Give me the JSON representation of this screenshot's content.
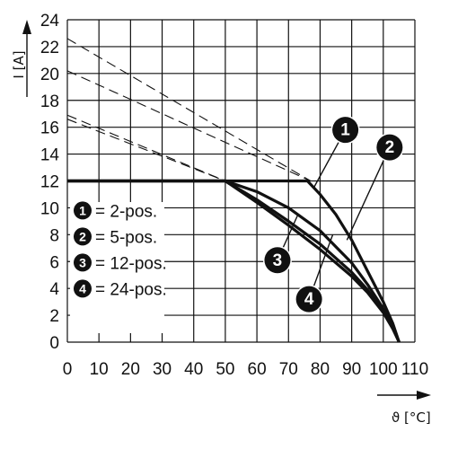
{
  "chart_data": {
    "type": "line",
    "xlabel": "ϑ [°C]",
    "ylabel": "I [A]",
    "xlim": [
      0,
      110
    ],
    "ylim": [
      0,
      24
    ],
    "xticks": [
      "0",
      "10",
      "20",
      "30",
      "40",
      "50",
      "60",
      "70",
      "80",
      "90",
      "100",
      "110"
    ],
    "yticks": [
      "0",
      "2",
      "4",
      "6",
      "8",
      "10",
      "12",
      "14",
      "16",
      "18",
      "20",
      "22",
      "24"
    ],
    "grid": true,
    "legend_position": "left",
    "series": [
      {
        "marker": "1",
        "name": "= 2-pos.",
        "x": [
          0,
          76,
          80,
          85,
          90,
          95,
          100,
          103,
          105
        ],
        "y": [
          12,
          12,
          11,
          9.5,
          7.6,
          5.3,
          3.0,
          1.4,
          0
        ]
      },
      {
        "marker": "2",
        "name": "= 5-pos.",
        "x": [
          0,
          50,
          60,
          70,
          80,
          90,
          95,
          100,
          103,
          105
        ],
        "y": [
          12,
          12,
          11.2,
          10.0,
          8.3,
          5.9,
          4.3,
          2.5,
          1.2,
          0
        ]
      },
      {
        "marker": "3",
        "name": "= 12-pos.",
        "x": [
          0,
          50,
          60,
          70,
          80,
          90,
          95,
          100,
          103,
          105
        ],
        "y": [
          12,
          12,
          10.6,
          9.0,
          7.3,
          5.2,
          3.9,
          2.3,
          1.1,
          0
        ]
      },
      {
        "marker": "4",
        "name": "= 24-pos.",
        "x": [
          0,
          50,
          60,
          70,
          80,
          90,
          95,
          100,
          103,
          105
        ],
        "y": [
          12,
          12,
          10.4,
          8.7,
          6.9,
          4.9,
          3.7,
          2.2,
          1.0,
          0
        ]
      }
    ],
    "dashed_lines": [
      {
        "x": [
          0,
          77
        ],
        "y": [
          22.6,
          12
        ]
      },
      {
        "x": [
          0,
          77
        ],
        "y": [
          20.2,
          12
        ]
      },
      {
        "x": [
          0,
          50
        ],
        "y": [
          16.9,
          12
        ]
      },
      {
        "x": [
          0,
          50
        ],
        "y": [
          16.6,
          12
        ]
      }
    ],
    "callouts": [
      {
        "marker": "1",
        "x": 88,
        "y": 15.8,
        "target_x": 78,
        "target_y": 11.5
      },
      {
        "marker": "2",
        "x": 102,
        "y": 14.5,
        "target_x": 88.5,
        "target_y": 7.6
      },
      {
        "marker": "3",
        "x": 66.5,
        "y": 6.1,
        "target_x": 73,
        "target_y": 9.5
      },
      {
        "marker": "4",
        "x": 76.5,
        "y": 3.2,
        "target_x": 84,
        "target_y": 8.0
      }
    ],
    "colors": {
      "line": "#111111",
      "grid": "#111111",
      "badge": "#111111"
    }
  }
}
